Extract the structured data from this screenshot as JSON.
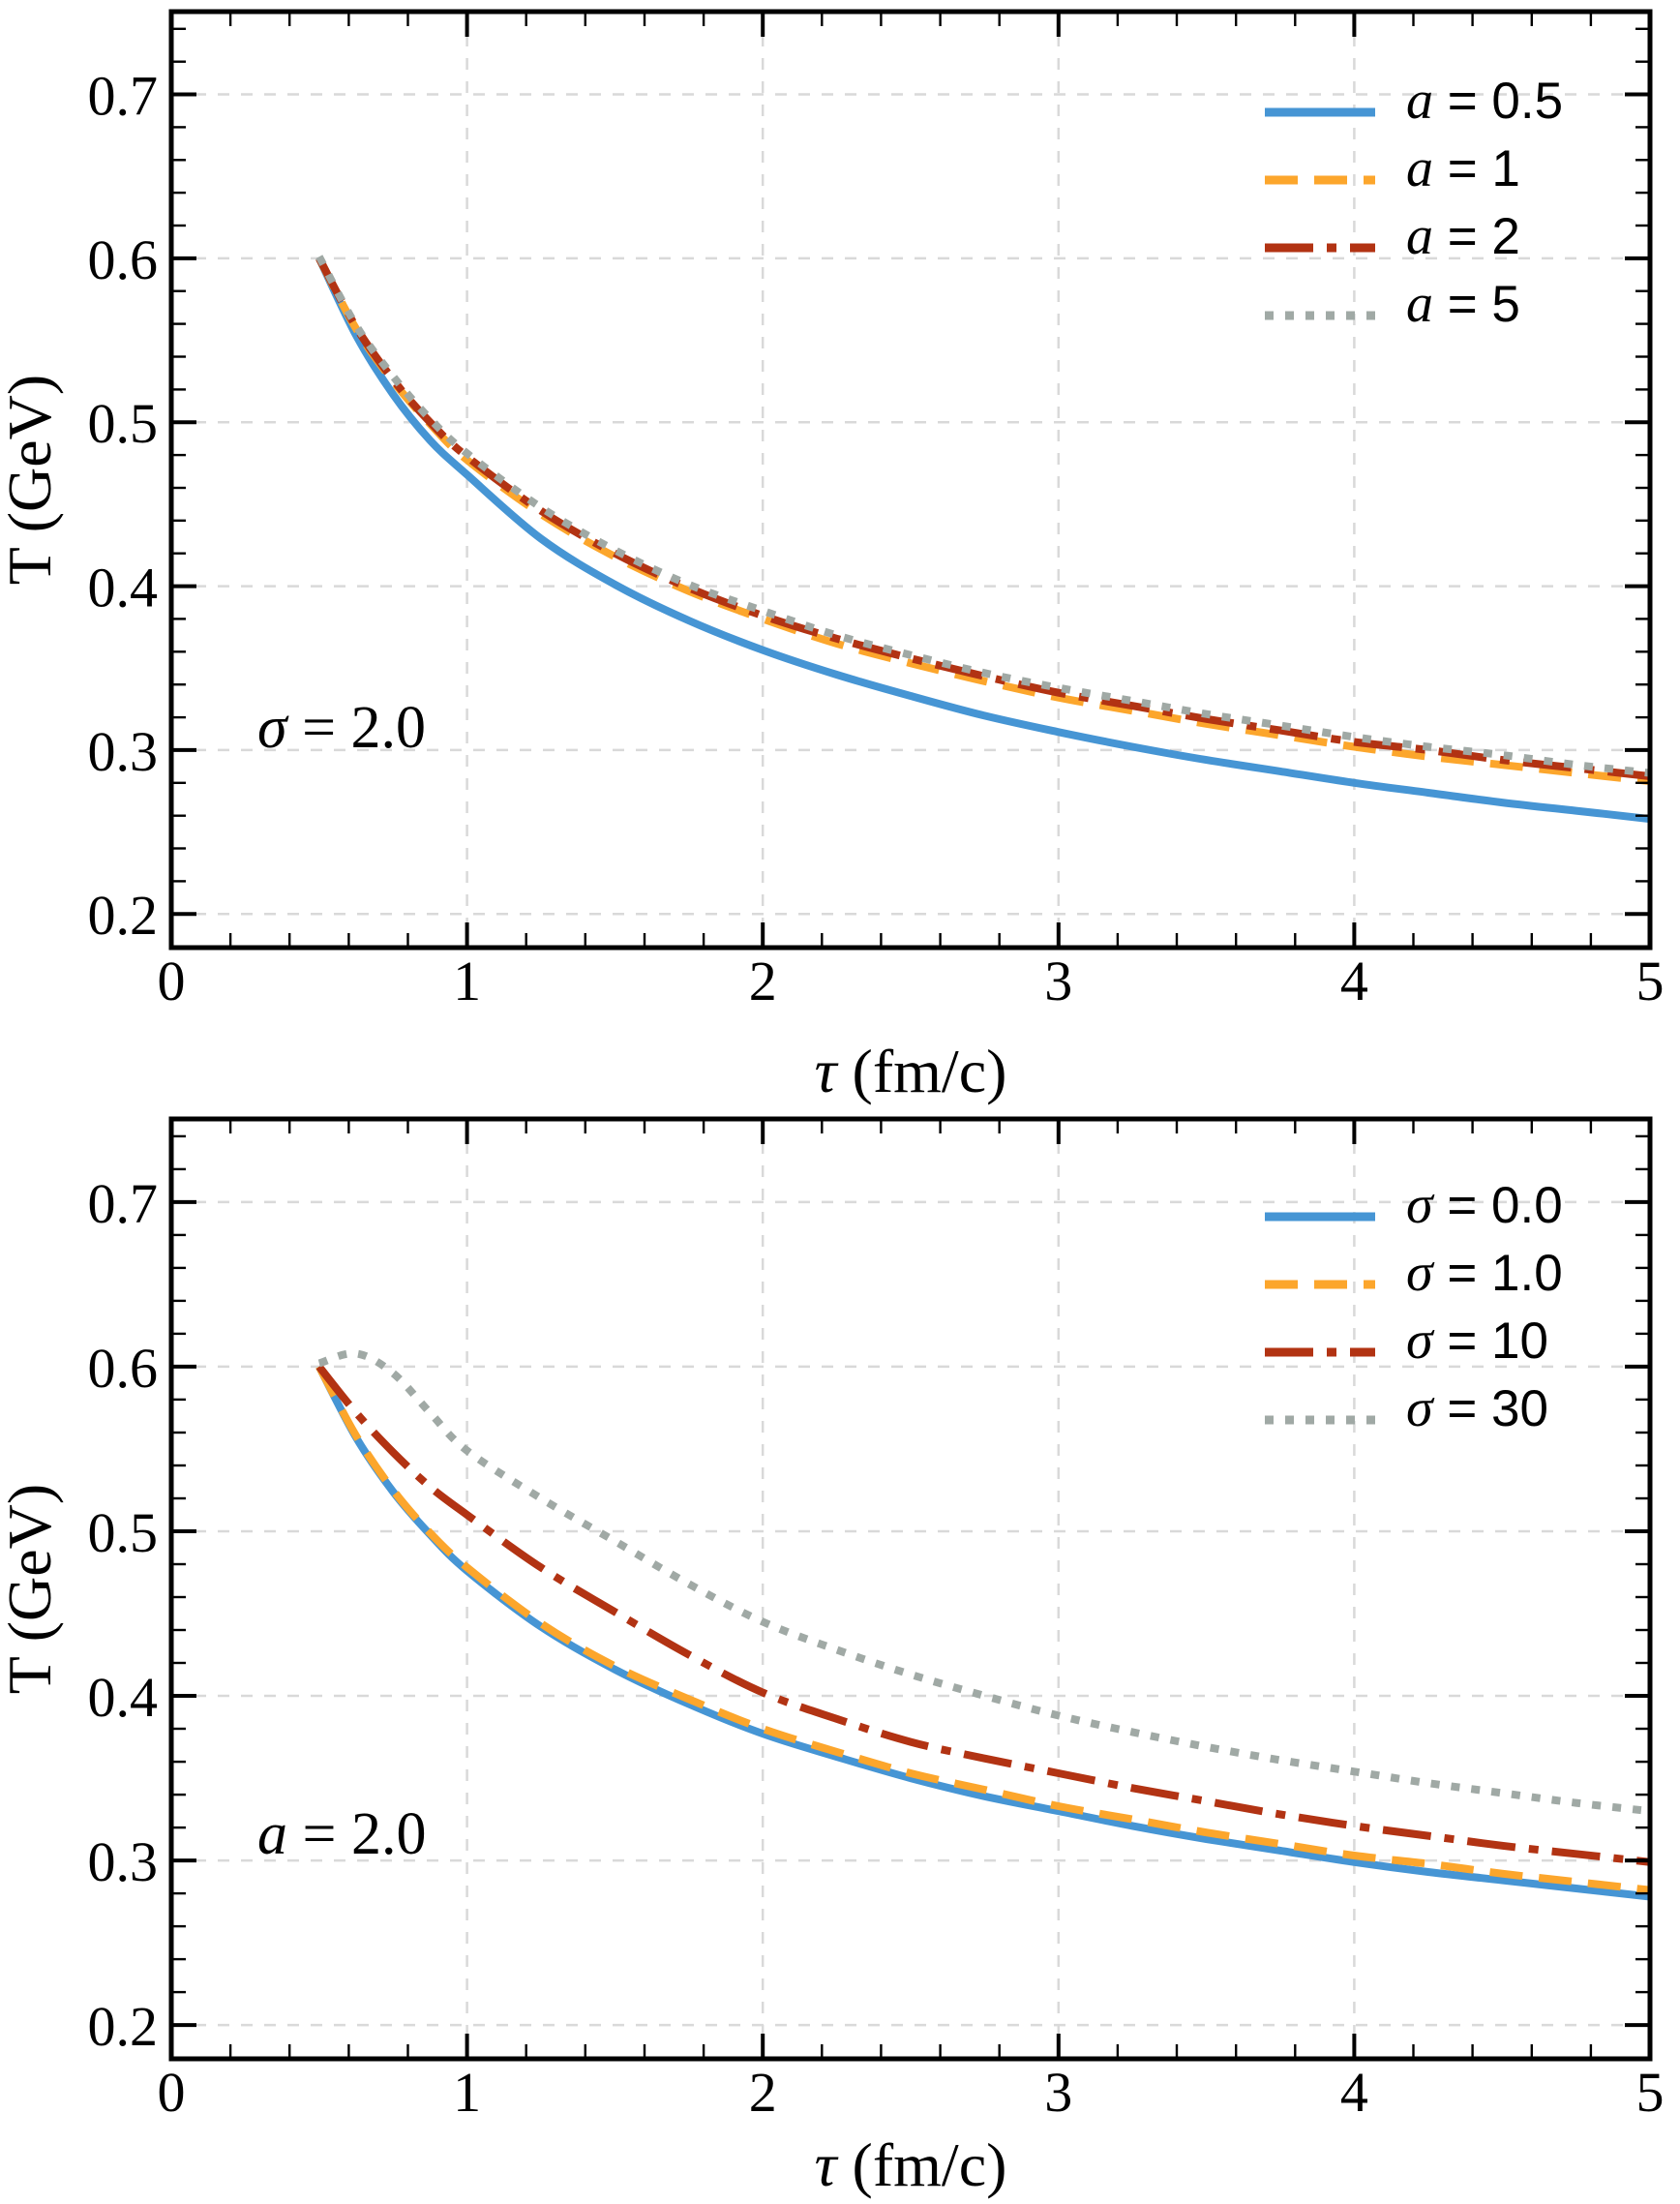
{
  "figure": {
    "colors": {
      "blue": "#4695d4",
      "orange": "#fca62c",
      "red": "#b23313",
      "gray": "#a0a9a5",
      "grid": "#d9d9d9",
      "axis": "#000000",
      "background": "#ffffff"
    }
  },
  "chart_data": [
    {
      "type": "line",
      "panel": "top",
      "title": "",
      "xlabel": "τ (fm/c)",
      "xlabel_var": "τ",
      "xlabel_rest": " (fm/c)",
      "ylabel": "T (GeV)",
      "annotation": {
        "var": "σ",
        "rest": " = 2.0"
      },
      "xlim": [
        0,
        5
      ],
      "ylim": [
        0.1795,
        0.7505
      ],
      "x_ticks": [
        0,
        1,
        2,
        3,
        4,
        5
      ],
      "x_tick_labels": [
        "0",
        "1",
        "2",
        "3",
        "4",
        "5"
      ],
      "y_ticks": [
        0.2,
        0.3,
        0.4,
        0.5,
        0.6,
        0.7
      ],
      "y_tick_labels": [
        "0.2",
        "0.3",
        "0.4",
        "0.5",
        "0.6",
        "0.7"
      ],
      "x_minor_step": 0.2,
      "y_minor_step": 0.02,
      "grid": true,
      "legend_position": "upper right",
      "x": [
        0.5,
        0.625,
        0.75,
        0.875,
        1,
        1.25,
        1.5,
        1.75,
        2,
        2.25,
        2.5,
        2.75,
        3,
        3.25,
        3.5,
        3.75,
        4,
        4.25,
        4.5,
        4.75,
        5
      ],
      "series": [
        {
          "id": "a-0.5",
          "name": "a = 0.5",
          "var": "a",
          "rest": " = 0.5",
          "color": "blue",
          "style": "solid",
          "values": [
            0.6,
            0.553,
            0.517,
            0.489,
            0.468,
            0.429,
            0.401,
            0.379,
            0.361,
            0.346,
            0.333,
            0.321,
            0.311,
            0.302,
            0.294,
            0.287,
            0.28,
            0.274,
            0.268,
            0.263,
            0.258
          ]
        },
        {
          "id": "a-1",
          "name": "a = 1",
          "var": "a",
          "rest": " = 1",
          "color": "orange",
          "style": "dashed",
          "values": [
            0.6,
            0.557,
            0.525,
            0.499,
            0.477,
            0.444,
            0.418,
            0.397,
            0.38,
            0.365,
            0.353,
            0.342,
            0.332,
            0.324,
            0.316,
            0.309,
            0.302,
            0.296,
            0.291,
            0.286,
            0.281
          ]
        },
        {
          "id": "a-2",
          "name": "a = 2",
          "var": "a",
          "rest": " = 2",
          "color": "red",
          "style": "dashdot",
          "values": [
            0.6,
            0.558,
            0.526,
            0.5,
            0.479,
            0.446,
            0.42,
            0.399,
            0.382,
            0.368,
            0.356,
            0.345,
            0.335,
            0.327,
            0.319,
            0.312,
            0.305,
            0.3,
            0.294,
            0.289,
            0.284
          ]
        },
        {
          "id": "a-5",
          "name": "a = 5",
          "var": "a",
          "rest": " = 5",
          "color": "gray",
          "style": "dotted",
          "values": [
            0.601,
            0.559,
            0.528,
            0.502,
            0.481,
            0.448,
            0.422,
            0.401,
            0.385,
            0.37,
            0.358,
            0.347,
            0.338,
            0.33,
            0.322,
            0.315,
            0.308,
            0.302,
            0.297,
            0.291,
            0.286
          ]
        }
      ]
    },
    {
      "type": "line",
      "panel": "bottom",
      "title": "",
      "xlabel": "τ (fm/c)",
      "xlabel_var": "τ",
      "xlabel_rest": " (fm/c)",
      "ylabel": "T (GeV)",
      "annotation": {
        "var": "a",
        "rest": " = 2.0"
      },
      "xlim": [
        0,
        5
      ],
      "ylim": [
        0.1795,
        0.7505
      ],
      "x_ticks": [
        0,
        1,
        2,
        3,
        4,
        5
      ],
      "x_tick_labels": [
        "0",
        "1",
        "2",
        "3",
        "4",
        "5"
      ],
      "y_ticks": [
        0.2,
        0.3,
        0.4,
        0.5,
        0.6,
        0.7
      ],
      "y_tick_labels": [
        "0.2",
        "0.3",
        "0.4",
        "0.5",
        "0.6",
        "0.7"
      ],
      "x_minor_step": 0.2,
      "y_minor_step": 0.02,
      "grid": true,
      "legend_position": "upper right",
      "x": [
        0.5,
        0.625,
        0.75,
        0.875,
        1,
        1.25,
        1.5,
        1.75,
        2,
        2.25,
        2.5,
        2.75,
        3,
        3.25,
        3.5,
        3.75,
        4,
        4.25,
        4.5,
        4.75,
        5
      ],
      "series": [
        {
          "id": "sigma-0.0",
          "name": "σ = 0.0",
          "var": "σ",
          "rest": " = 0.0",
          "color": "blue",
          "style": "solid",
          "values": [
            0.6,
            0.557,
            0.524,
            0.498,
            0.476,
            0.442,
            0.416,
            0.395,
            0.377,
            0.363,
            0.35,
            0.339,
            0.33,
            0.321,
            0.313,
            0.306,
            0.299,
            0.293,
            0.288,
            0.283,
            0.278
          ]
        },
        {
          "id": "sigma-1.0",
          "name": "σ = 1.0",
          "var": "σ",
          "rest": " = 1.0",
          "color": "orange",
          "style": "dashed",
          "values": [
            0.6,
            0.558,
            0.525,
            0.499,
            0.478,
            0.444,
            0.418,
            0.398,
            0.38,
            0.366,
            0.353,
            0.343,
            0.333,
            0.325,
            0.317,
            0.31,
            0.303,
            0.298,
            0.292,
            0.287,
            0.282
          ]
        },
        {
          "id": "sigma-10",
          "name": "σ = 10",
          "var": "σ",
          "rest": " = 10",
          "color": "red",
          "style": "dashdot",
          "values": [
            0.6,
            0.572,
            0.548,
            0.527,
            0.51,
            0.478,
            0.451,
            0.425,
            0.402,
            0.386,
            0.372,
            0.362,
            0.353,
            0.344,
            0.336,
            0.328,
            0.321,
            0.315,
            0.309,
            0.304,
            0.299
          ]
        },
        {
          "id": "sigma-30",
          "name": "σ = 30",
          "var": "σ",
          "rest": " = 30",
          "color": "gray",
          "style": "dotted",
          "values": [
            0.602,
            0.608,
            0.596,
            0.572,
            0.549,
            0.52,
            0.494,
            0.468,
            0.445,
            0.428,
            0.413,
            0.4,
            0.388,
            0.378,
            0.369,
            0.361,
            0.354,
            0.347,
            0.341,
            0.335,
            0.33
          ]
        }
      ]
    }
  ]
}
